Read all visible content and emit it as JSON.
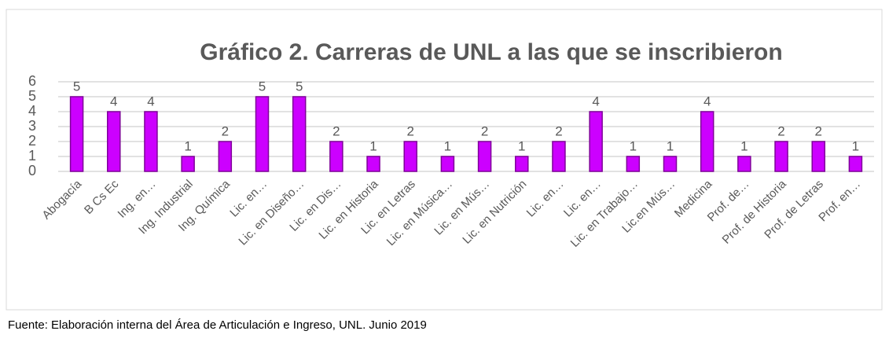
{
  "chart_data": {
    "type": "bar",
    "title": "Gráfico 2. Carreras de UNL a las que se inscribieron",
    "categories": [
      "Abogacía",
      "B Cs Ec",
      "Ing. en…",
      "Ing. Industrial",
      "Ing. Química",
      "Lic. en…",
      "Lic. en Diseño…",
      "Lic. en Dis…",
      "Lic. en Historia",
      "Lic. en Letras",
      "Lic. en Música…",
      "Lic. en Mús…",
      "Lic. en Nutrición",
      "Lic. en…",
      "Lic. en…",
      "Lic. en Trabajo…",
      "Lic.en Mús…",
      "Medicina",
      "Prof. de…",
      "Prof. de Historia",
      "Prof. de Letras",
      "Prof. en…"
    ],
    "values": [
      5,
      4,
      4,
      1,
      2,
      5,
      5,
      2,
      1,
      2,
      1,
      2,
      1,
      2,
      4,
      1,
      1,
      4,
      1,
      2,
      2,
      1
    ],
    "color": "#cc00ff",
    "ylim": [
      0,
      6
    ],
    "yticks": [
      0,
      1,
      2,
      3,
      4,
      5,
      6
    ],
    "grid": true
  },
  "source": "Fuente: Elaboración interna del Área de Articulación e Ingreso, UNL. Junio 2019"
}
